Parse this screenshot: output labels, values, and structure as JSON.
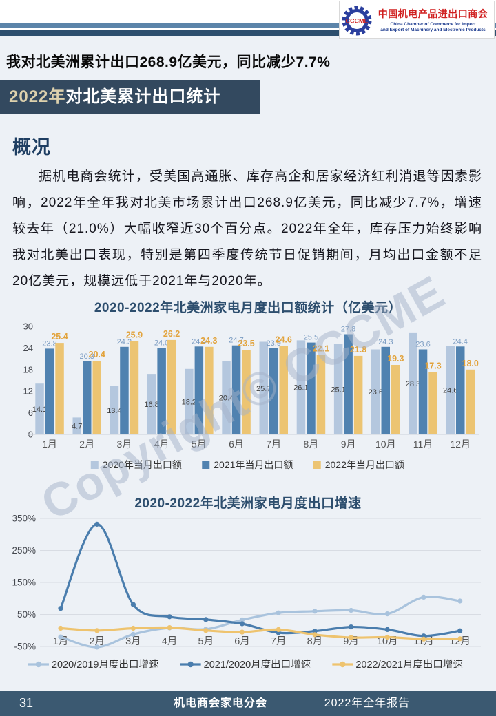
{
  "header": {
    "logo": {
      "abbr": "CCCME",
      "org_cn": "中国机电产品进出口商会",
      "org_en_line1": "China Chamber of Commerce for Import",
      "org_en_line2": "and Export of Machinery and Electronic Products"
    },
    "headline": "我对北美洲累计出口268.9亿美元，同比减少7.7%",
    "banner": {
      "year": "2022年",
      "rest": "对北美累计出口统计"
    }
  },
  "overview": {
    "heading": "概况",
    "paragraph": "据机电商会统计，受美国高通胀、库存高企和居家经济红利消退等因素影响，2022年全年我对北美市场累计出口268.9亿美元，同比减少7.7%，增速较去年（21.0%）大幅收窄近30个百分点。2022年全年，库存压力始终影响我对北美出口表现，特别是第四季度传统节日促销期间，月均出口金额不足20亿美元，规模远低于2021年与2020年。"
  },
  "watermark": "Copyright© CCCME",
  "chart_data": [
    {
      "type": "bar",
      "title": "2020-2022年北美洲家电月度出口额统计（亿美元）",
      "categories": [
        "1月",
        "2月",
        "3月",
        "4月",
        "5月",
        "6月",
        "7月",
        "8月",
        "9月",
        "10月",
        "11月",
        "12月"
      ],
      "series": [
        {
          "name": "2020年当月出口额",
          "color": "#b4c7de",
          "label_color": "#3f3f3f",
          "values": [
            14.1,
            4.7,
            13.4,
            16.8,
            18.2,
            20.4,
            25.7,
            26.1,
            25.1,
            23.6,
            28.3,
            24.6
          ]
        },
        {
          "name": "2021年当月出口额",
          "color": "#5082b0",
          "label_color": "#7b9cc2",
          "values": [
            23.8,
            20.3,
            24.3,
            24.0,
            24.4,
            24.7,
            23.9,
            25.5,
            27.8,
            24.3,
            23.6,
            24.4
          ]
        },
        {
          "name": "2022年当月出口额",
          "color": "#ecc472",
          "label_color": "#e2a33c",
          "values": [
            25.4,
            20.4,
            25.9,
            26.2,
            24.3,
            23.5,
            24.6,
            22.1,
            21.8,
            19.3,
            17.3,
            18.0
          ]
        }
      ],
      "ylim": [
        0,
        30
      ],
      "yticks": [
        0,
        6,
        12,
        18,
        24,
        30
      ],
      "grid": false,
      "legend_position": "bottom"
    },
    {
      "type": "line",
      "title": "2020-2022年北美洲家电月度出口增速",
      "categories": [
        "1月",
        "2月",
        "3月",
        "4月",
        "5月",
        "6月",
        "7月",
        "8月",
        "9月",
        "10月",
        "11月",
        "12月"
      ],
      "series": [
        {
          "name": "2020/2019月度出口增速",
          "color": "#a9c3dd",
          "values": [
            -20,
            -52,
            -12,
            8,
            4,
            33,
            55,
            60,
            63,
            52,
            104,
            92
          ]
        },
        {
          "name": "2021/2020月度出口增速",
          "color": "#4a7dad",
          "values": [
            69,
            332,
            81,
            43,
            34,
            21,
            -7,
            -2,
            11,
            3,
            -17,
            -1
          ]
        },
        {
          "name": "2022/2021月度出口增速",
          "color": "#eec36e",
          "values": [
            7,
            0,
            7,
            9,
            0,
            -5,
            3,
            -13,
            -22,
            -21,
            -27,
            -26
          ]
        }
      ],
      "ylim": [
        -50,
        350
      ],
      "yticks": [
        350,
        250,
        150,
        50,
        -50
      ],
      "ytick_suffix": "%",
      "grid": true,
      "legend_position": "bottom"
    }
  ],
  "footer": {
    "page": "31",
    "center": "机电商会家电分会",
    "right": "2022年全年报告"
  }
}
